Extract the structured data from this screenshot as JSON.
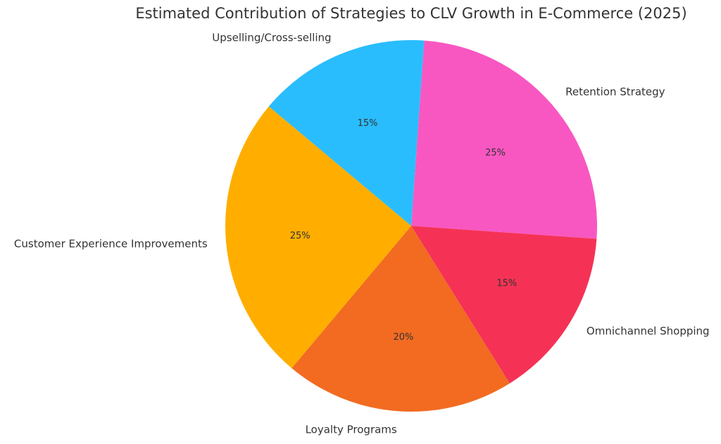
{
  "chart_data": {
    "type": "pie",
    "title": "Estimated Contribution of Strategies to CLV Growth in E-Commerce (2025)",
    "start_angle_deg": -4,
    "direction": "counterclockwise",
    "slices": [
      {
        "label": "Retention Strategy",
        "value": 25,
        "pct_label": "25%",
        "color": "#F857C1"
      },
      {
        "label": "Upselling/Cross-selling",
        "value": 15,
        "pct_label": "15%",
        "color": "#29BDFD"
      },
      {
        "label": "Customer Experience Improvements",
        "value": 25,
        "pct_label": "25%",
        "color": "#FFAE00"
      },
      {
        "label": "Loyalty Programs",
        "value": 20,
        "pct_label": "20%",
        "color": "#F26B21"
      },
      {
        "label": "Omnichannel Shopping",
        "value": 15,
        "pct_label": "15%",
        "color": "#F53255"
      }
    ]
  }
}
